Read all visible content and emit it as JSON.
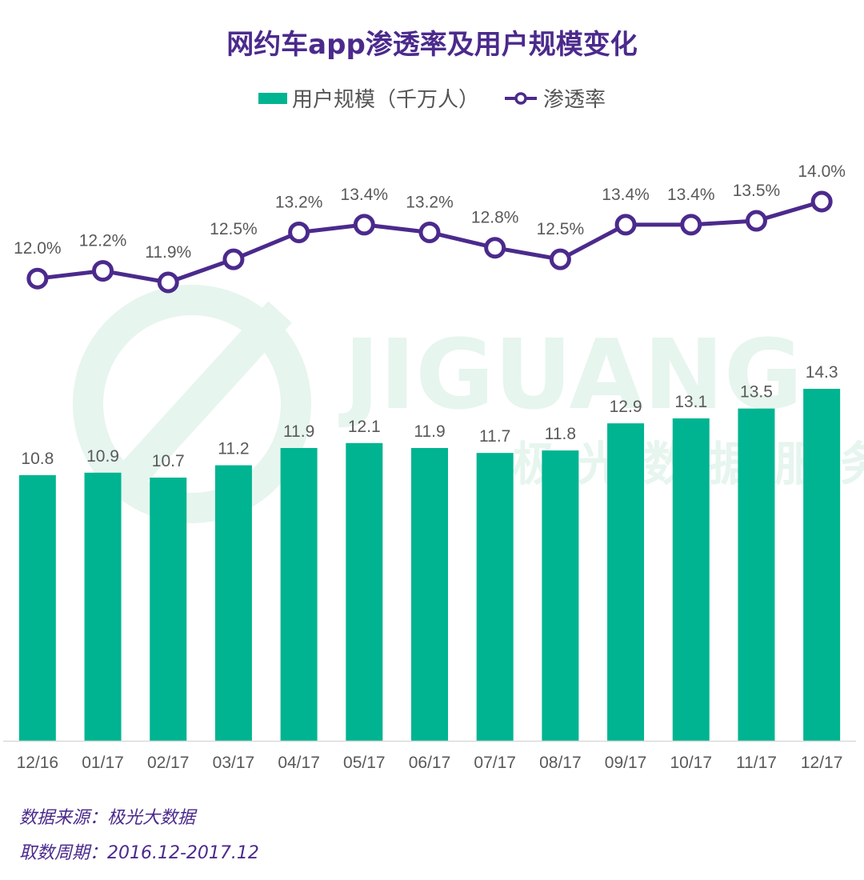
{
  "title": "网约车app渗透率及用户规模变化",
  "colors": {
    "bar": "#00b491",
    "line": "#4b2a8c",
    "title": "#4b2a8c",
    "text": "#595959",
    "watermark": "#e6f5ee"
  },
  "watermark": {
    "brand": "JIGUANG",
    "subtitle": "极光数据服务"
  },
  "chart_data": {
    "type": "bar",
    "categories": [
      "12/16",
      "01/17",
      "02/17",
      "03/17",
      "04/17",
      "05/17",
      "06/17",
      "07/17",
      "08/17",
      "09/17",
      "10/17",
      "11/17",
      "12/17"
    ],
    "series": [
      {
        "name": "用户规模（千万人）",
        "type": "bar",
        "values": [
          10.8,
          10.9,
          10.7,
          11.2,
          11.9,
          12.1,
          11.9,
          11.7,
          11.8,
          12.9,
          13.1,
          13.5,
          14.3
        ]
      },
      {
        "name": "渗透率",
        "type": "line",
        "unit": "%",
        "values": [
          12.0,
          12.2,
          11.9,
          12.5,
          13.2,
          13.4,
          13.2,
          12.8,
          12.5,
          13.4,
          13.4,
          13.5,
          14.0
        ]
      }
    ],
    "legend_position": "top-center"
  },
  "footer": {
    "source": "数据来源：极光大数据",
    "period": "取数周期：2016.12-2017.12"
  }
}
